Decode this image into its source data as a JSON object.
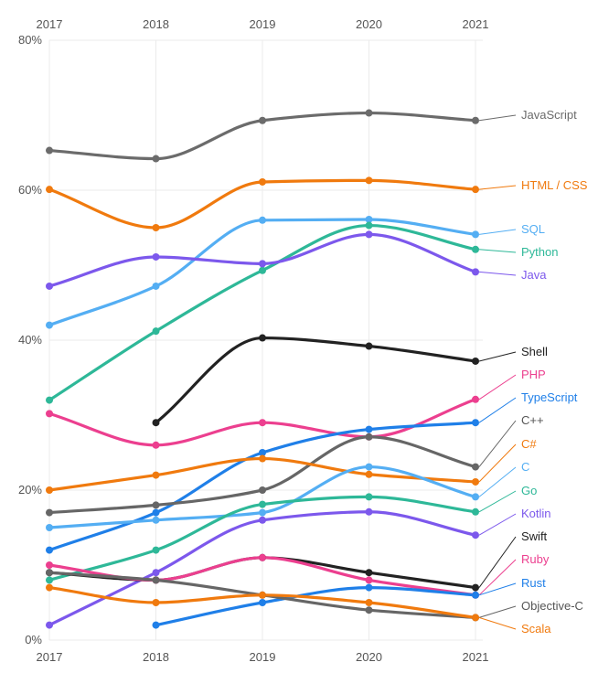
{
  "chart_data": {
    "type": "line",
    "x": [
      "2017",
      "2018",
      "2019",
      "2020",
      "2021"
    ],
    "ylim": [
      0,
      80
    ],
    "y_ticks": [
      "0%",
      "20%",
      "40%",
      "60%",
      "80%"
    ],
    "y_tick_values": [
      0,
      20,
      40,
      60,
      80
    ],
    "grid": true,
    "series": [
      {
        "name": "JavaScript",
        "color": "#6b6b6b",
        "values": [
          65.3,
          64.2,
          69.3,
          70.3,
          69.3
        ],
        "label_color": "#6b6b6b"
      },
      {
        "name": "HTML / CSS",
        "color": "#f07a0e",
        "values": [
          60.1,
          55.0,
          61.1,
          61.3,
          60.1
        ],
        "label_color": "#f07a0e"
      },
      {
        "name": "SQL",
        "color": "#54aef3",
        "values": [
          42.0,
          47.2,
          56.0,
          56.1,
          54.1
        ],
        "label_color": "#54aef3"
      },
      {
        "name": "Python",
        "color": "#2eb898",
        "values": [
          32.0,
          41.2,
          49.3,
          55.3,
          52.1
        ],
        "label_color": "#2eb898"
      },
      {
        "name": "Java",
        "color": "#7c58ec",
        "values": [
          47.2,
          51.1,
          50.2,
          54.1,
          49.1
        ],
        "label_color": "#7c58ec"
      },
      {
        "name": "Shell",
        "color": "#222222",
        "values": [
          null,
          29.0,
          40.3,
          39.2,
          37.2
        ],
        "label_color": "#222222"
      },
      {
        "name": "PHP",
        "color": "#ec3f8f",
        "values": [
          30.2,
          26.0,
          29.0,
          27.1,
          32.1
        ],
        "label_color": "#ec3f8f"
      },
      {
        "name": "TypeScript",
        "color": "#1f7fe8",
        "values": [
          12.0,
          17.0,
          25.0,
          28.1,
          29.0
        ],
        "label_color": "#1f7fe8"
      },
      {
        "name": "C++",
        "color": "#666666",
        "values": [
          17.0,
          18.0,
          20.0,
          27.1,
          23.1
        ],
        "label_color": "#555555"
      },
      {
        "name": "C#",
        "color": "#f07a0e",
        "values": [
          20.0,
          22.0,
          24.2,
          22.1,
          21.1
        ],
        "label_color": "#f07a0e"
      },
      {
        "name": "C",
        "color": "#54aef3",
        "values": [
          15.0,
          16.0,
          17.0,
          23.1,
          19.1
        ],
        "label_color": "#54aef3"
      },
      {
        "name": "Go",
        "color": "#2eb898",
        "values": [
          8.0,
          12.0,
          18.1,
          19.1,
          17.1
        ],
        "label_color": "#2eb898"
      },
      {
        "name": "Kotlin",
        "color": "#7c58ec",
        "values": [
          2.0,
          9.0,
          16.0,
          17.1,
          14.0
        ],
        "label_color": "#7c58ec"
      },
      {
        "name": "Swift",
        "color": "#222222",
        "values": [
          9.0,
          8.0,
          11.0,
          9.0,
          7.0
        ],
        "label_color": "#222222"
      },
      {
        "name": "Ruby",
        "color": "#ec3f8f",
        "values": [
          10.0,
          8.0,
          11.0,
          8.0,
          6.0
        ],
        "label_color": "#ec3f8f"
      },
      {
        "name": "Rust",
        "color": "#1f7fe8",
        "values": [
          null,
          2.0,
          5.0,
          7.0,
          6.0
        ],
        "label_color": "#1f7fe8"
      },
      {
        "name": "Objective-C",
        "color": "#666666",
        "values": [
          9.0,
          8.0,
          6.0,
          4.0,
          3.0
        ],
        "label_color": "#555555"
      },
      {
        "name": "Scala",
        "color": "#f07a0e",
        "values": [
          7.0,
          5.0,
          6.0,
          5.0,
          3.0
        ],
        "label_color": "#f07a0e"
      }
    ]
  }
}
